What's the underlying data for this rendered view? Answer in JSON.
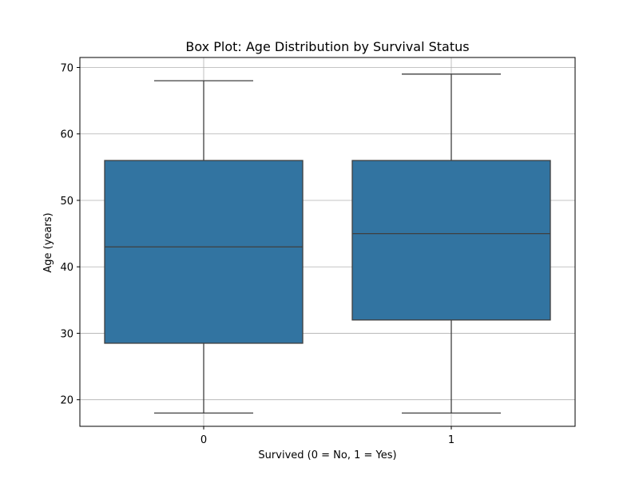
{
  "chart_data": {
    "type": "box",
    "title": "Box Plot: Age Distribution by Survival Status",
    "xlabel": "Survived (0 = No, 1 = Yes)",
    "ylabel": "Age (years)",
    "categories": [
      "0",
      "1"
    ],
    "boxes": [
      {
        "category": "0",
        "whisker_low": 18,
        "q1": 28.5,
        "median": 43,
        "q3": 56,
        "whisker_high": 68
      },
      {
        "category": "1",
        "whisker_low": 18,
        "q1": 32,
        "median": 45,
        "q3": 56,
        "whisker_high": 69
      }
    ],
    "yticks": [
      20,
      30,
      40,
      50,
      60,
      70
    ],
    "ylim": [
      16,
      71.5
    ],
    "grid": true,
    "colors": {
      "box_fill": "#3274a1",
      "line": "#3f3f3f",
      "grid": "#b0b0b0"
    }
  }
}
